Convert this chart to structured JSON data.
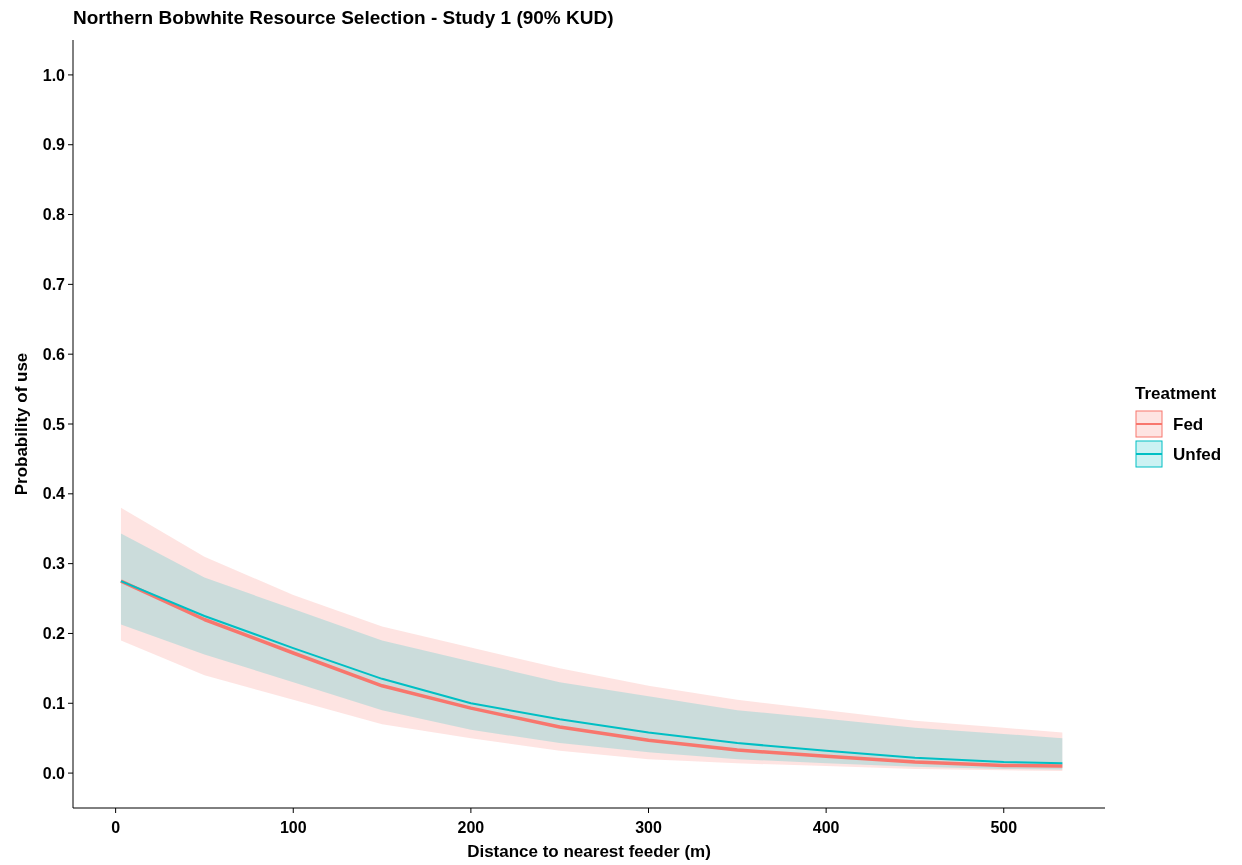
{
  "chart_data": {
    "type": "line",
    "title": "Northern Bobwhite Resource Selection - Study 1 (90% KUD)",
    "xlabel": "Distance to nearest feeder (m)",
    "ylabel": "Probability of use",
    "legend_title": "Treatment",
    "x": [
      3,
      50,
      100,
      150,
      200,
      250,
      300,
      350,
      400,
      450,
      500,
      533
    ],
    "series": [
      {
        "name": "Fed",
        "color": "#f8766d",
        "values": [
          0.275,
          0.22,
          0.172,
          0.125,
          0.093,
          0.066,
          0.047,
          0.033,
          0.024,
          0.016,
          0.011,
          0.01
        ],
        "lower": [
          0.19,
          0.14,
          0.105,
          0.07,
          0.05,
          0.032,
          0.02,
          0.014,
          0.01,
          0.006,
          0.004,
          0.003
        ],
        "upper": [
          0.38,
          0.31,
          0.255,
          0.21,
          0.18,
          0.15,
          0.125,
          0.105,
          0.09,
          0.075,
          0.065,
          0.058
        ]
      },
      {
        "name": "Unfed",
        "color": "#00bfc4",
        "values": [
          0.275,
          0.225,
          0.179,
          0.135,
          0.1,
          0.077,
          0.058,
          0.043,
          0.032,
          0.022,
          0.016,
          0.014
        ],
        "lower": [
          0.213,
          0.17,
          0.13,
          0.09,
          0.062,
          0.043,
          0.03,
          0.02,
          0.014,
          0.009,
          0.006,
          0.005
        ],
        "upper": [
          0.343,
          0.28,
          0.235,
          0.19,
          0.16,
          0.13,
          0.11,
          0.09,
          0.078,
          0.065,
          0.056,
          0.05
        ]
      }
    ],
    "xlim": [
      -24,
      557
    ],
    "ylim": [
      -0.05,
      1.05
    ],
    "xticks": [
      0,
      100,
      200,
      300,
      400,
      500
    ],
    "yticks": [
      {
        "value": 0,
        "label": "0.0"
      },
      0.1,
      0.2,
      0.3,
      0.4,
      0.5,
      0.6,
      0.7,
      0.8,
      0.9,
      {
        "value": 1,
        "label": "1.0"
      }
    ],
    "grid": false,
    "legend": "right"
  }
}
